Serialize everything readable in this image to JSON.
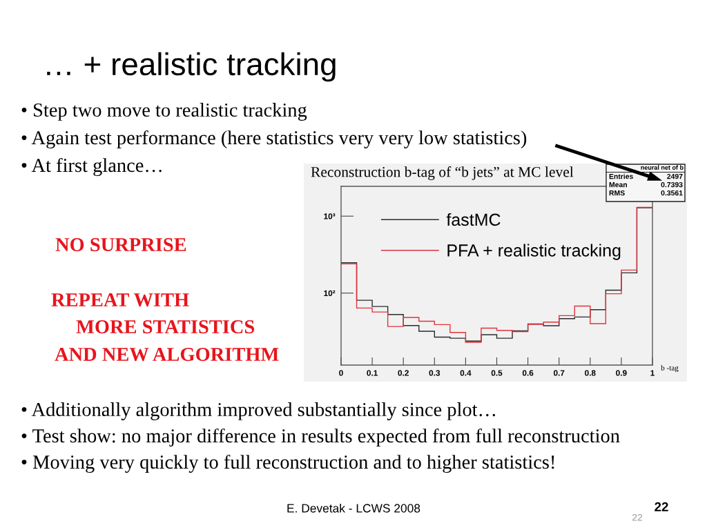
{
  "chart_data": {
    "type": "histogram",
    "title": "… + realistic tracking",
    "subtitle": "Reconstruction b-tag of “b jets” at MC level",
    "xlabel": "b -tag",
    "bins": [
      0,
      0.05,
      0.1,
      0.15,
      0.2,
      0.25,
      0.3,
      0.35,
      0.4,
      0.45,
      0.5,
      0.55,
      0.6,
      0.65,
      0.7,
      0.75,
      0.8,
      0.85,
      0.9,
      0.95,
      1
    ],
    "series": [
      {
        "name": "fastMC",
        "color": "#2b2b2b",
        "values": [
          248,
          80.7,
          67,
          52.7,
          37.8,
          31.9,
          26.8,
          25.9,
          23.8,
          28.8,
          25.9,
          32.3,
          39.7,
          37.6,
          46.5,
          48.8,
          60.8,
          109,
          183,
          1285
        ]
      },
      {
        "name": "PFA + realistic tracking",
        "color": "#e0323c",
        "values": [
          240,
          63.9,
          56.8,
          36.8,
          48.2,
          43.1,
          38.9,
          30.8,
          22.9,
          35,
          32.7,
          31.6,
          39.2,
          42,
          50.9,
          67.9,
          40,
          98,
          199,
          1300
        ]
      }
    ],
    "xlim": [
      0,
      1
    ],
    "xticks": [
      0,
      0.1,
      0.2,
      0.3,
      0.4,
      0.5,
      0.6,
      0.7,
      0.8,
      0.9,
      1
    ],
    "ylim": [
      11.6,
      2440
    ],
    "yticks": [
      {
        "value": 100,
        "label": "10²"
      },
      {
        "value": 1000,
        "label": "10³"
      }
    ],
    "log": true,
    "legend": "top left",
    "annotations": [
      "• Step two move to realistic tracking",
      "• Again test performance (here statistics very very low statistics)",
      "• At first glance…",
      "NO SURPRISE",
      "REPEAT WITH",
      "MORE STATISTICS",
      "AND NEW ALGORITHM",
      "• Additionally algorithm improved substantially since plot…",
      "• Test show: no major difference in results expected from full reconstruction",
      "• Moving very quickly to full reconstruction and to higher statistics!",
      "neural net of b",
      "Entries",
      "2497",
      "Mean",
      "0.7393",
      "RMS",
      "0.3561",
      "E. Devetak - LCWS 2008",
      "22",
      "22"
    ]
  }
}
